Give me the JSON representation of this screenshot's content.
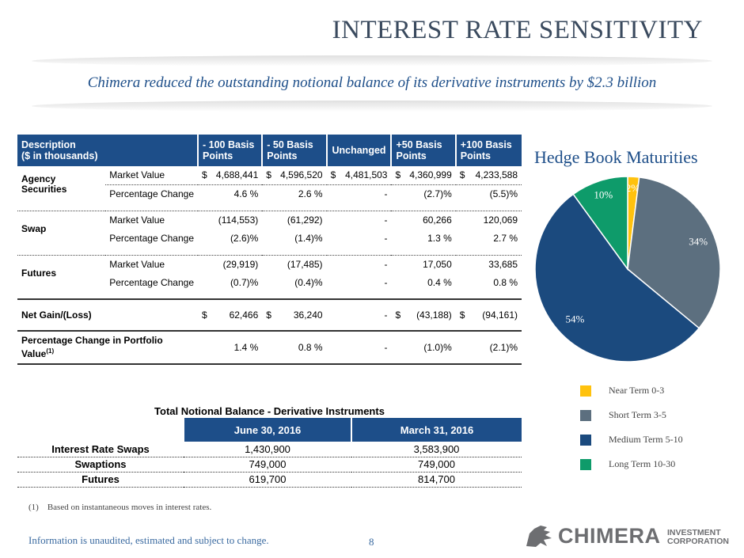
{
  "header": {
    "title": "INTEREST RATE SENSITIVITY",
    "subtitle": "Chimera reduced the outstanding notional balance of its derivative instruments by $2.3 billion"
  },
  "sensitivity_table": {
    "headers": {
      "description": "Description\n($ in thousands)",
      "minus100": "- 100 Basis Points",
      "minus50": "- 50 Basis Points",
      "unchanged": "Unchanged",
      "plus50": "+50 Basis Points",
      "plus100": "+100 Basis Points"
    },
    "agency": {
      "label": "Agency Securities",
      "mv_label": "Market Value",
      "mv": [
        "4,688,441",
        "4,596,520",
        "4,481,503",
        "4,360,999",
        "4,233,588"
      ],
      "pc_label": "Percentage Change",
      "pc": [
        "4.6 %",
        "2.6 %",
        "-",
        "(2.7)%",
        "(5.5)%"
      ]
    },
    "swap": {
      "label": "Swap",
      "mv_label": "Market Value",
      "mv": [
        "(114,553)",
        "(61,292)",
        "-",
        "60,266",
        "120,069"
      ],
      "pc_label": "Percentage Change",
      "pc": [
        "(2.6)%",
        "(1.4)%",
        "-",
        "1.3 %",
        "2.7 %"
      ]
    },
    "futures": {
      "label": "Futures",
      "mv_label": "Market Value",
      "mv": [
        "(29,919)",
        "(17,485)",
        "-",
        "17,050",
        "33,685"
      ],
      "pc_label": "Percentage Change",
      "pc": [
        "(0.7)%",
        "(0.4)%",
        "-",
        "0.4 %",
        "0.8 %"
      ]
    },
    "net": {
      "label": "Net Gain/(Loss)",
      "values": [
        "62,466",
        "36,240",
        "-",
        "(43,188)",
        "(94,161)"
      ]
    },
    "portfolio": {
      "label": "Percentage Change in Portfolio Value",
      "sup": "(1)",
      "values": [
        "1.4 %",
        "0.8 %",
        "-",
        "(1.0)%",
        "(2.1)%"
      ]
    },
    "dollar": "$"
  },
  "notional_table": {
    "title": "Total Notional Balance - Derivative Instruments",
    "col1": "June 30, 2016",
    "col2": "March 31, 2016",
    "rows": [
      {
        "label": "Interest Rate Swaps",
        "v1": "1,430,900",
        "v2": "3,583,900"
      },
      {
        "label": "Swaptions",
        "v1": "749,000",
        "v2": "749,000"
      },
      {
        "label": "Futures",
        "v1": "619,700",
        "v2": "814,700"
      }
    ]
  },
  "footnote": "(1)    Based on instantaneous moves in interest rates.",
  "disclaimer": "Information is unaudited, estimated and subject to change.",
  "page_number": "8",
  "logo": {
    "name": "CHIMERA",
    "line1": "INVESTMENT",
    "line2": "CORPORATION"
  },
  "chart_data": {
    "type": "pie",
    "title": "Hedge Book Maturities",
    "labels": [
      "Near Term 0-3",
      "Short Term 3-5",
      "Medium Term 5-10",
      "Long Term 10-30"
    ],
    "values": [
      2,
      34,
      54,
      10
    ],
    "value_labels": [
      "2%",
      "34%",
      "54%",
      "10%"
    ],
    "colors": [
      "#ffc20e",
      "#5c6f7f",
      "#1b4a7e",
      "#0e9b6a"
    ],
    "legend_position": "bottom"
  }
}
